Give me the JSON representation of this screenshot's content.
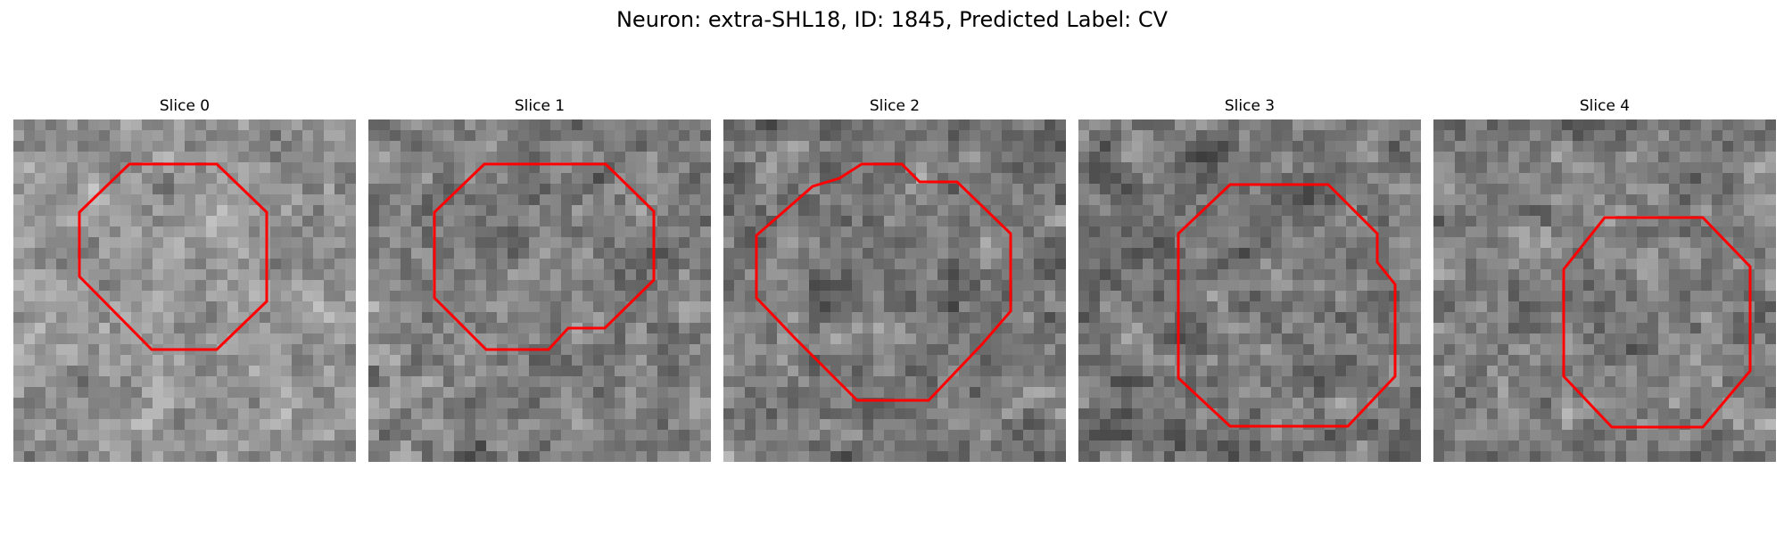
{
  "figure": {
    "title": "Neuron: extra-SHL18, ID: 1845, Predicted Label: CV",
    "contour_color": "#ff0000"
  },
  "panels": [
    {
      "label": "Slice 0",
      "seed": 11,
      "mean": 0.58,
      "contrast": 0.22
    },
    {
      "label": "Slice 1",
      "seed": 23,
      "mean": 0.5,
      "contrast": 0.24
    },
    {
      "label": "Slice 2",
      "seed": 37,
      "mean": 0.47,
      "contrast": 0.26
    },
    {
      "label": "Slice 3",
      "seed": 41,
      "mean": 0.46,
      "contrast": 0.24
    },
    {
      "label": "Slice 4",
      "seed": 53,
      "mean": 0.5,
      "contrast": 0.26
    }
  ]
}
